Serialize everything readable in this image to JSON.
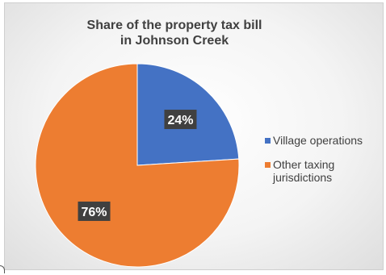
{
  "chart_data": {
    "type": "pie",
    "title": "Share of the property tax bill in Johnson Creek",
    "slices": [
      {
        "label": "Village operations",
        "value": 24,
        "data_label": "24%",
        "color": "#4472c4"
      },
      {
        "label": "Other taxing jurisdictions",
        "value": 76,
        "data_label": "76%",
        "color": "#ed7d31"
      }
    ],
    "legend_position": "right",
    "data_label_style": {
      "background": "#404040",
      "color": "#ffffff"
    }
  }
}
